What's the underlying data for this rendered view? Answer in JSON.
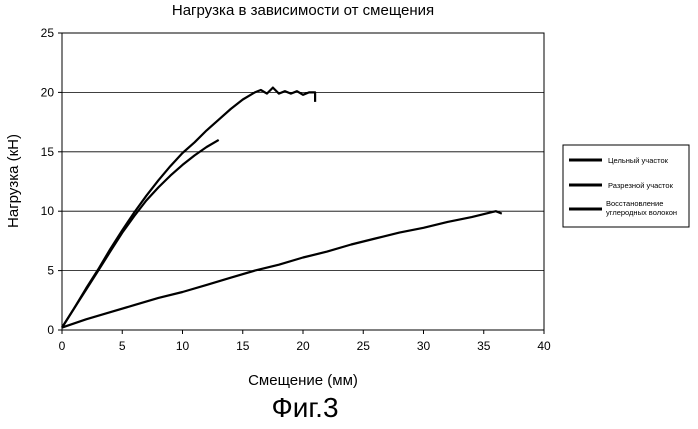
{
  "chart_data": {
    "type": "line",
    "title": "Нагрузка в зависимости от смещения",
    "xlabel": "Смещение (мм)",
    "ylabel": "Нагрузка  (кН)",
    "xlim": [
      0,
      40
    ],
    "ylim": [
      0,
      25
    ],
    "xticks": [
      0,
      5,
      10,
      15,
      20,
      25,
      30,
      35,
      40
    ],
    "yticks": [
      0,
      5,
      10,
      15,
      20,
      25
    ],
    "grid": "horizontal",
    "legend_position": "right",
    "series": [
      {
        "name": "Цельный участок",
        "x": [
          0,
          1,
          2,
          3,
          4,
          5,
          6,
          7,
          8,
          9,
          10,
          11,
          12,
          13,
          14,
          15,
          16,
          16.5,
          17,
          17.5,
          18,
          18.5,
          19,
          19.5,
          20,
          20.5,
          21,
          21
        ],
        "y": [
          0.2,
          1.8,
          3.5,
          5.1,
          6.8,
          8.4,
          9.9,
          11.3,
          12.6,
          13.8,
          14.9,
          15.8,
          16.8,
          17.7,
          18.6,
          19.4,
          20.0,
          20.2,
          19.9,
          20.4,
          19.9,
          20.1,
          19.9,
          20.1,
          19.8,
          20.0,
          20.0,
          19.2
        ]
      },
      {
        "name": "Разрезной участок",
        "x": [
          0,
          1,
          2,
          3,
          4,
          5,
          6,
          7,
          8,
          9,
          10,
          11,
          12,
          13
        ],
        "y": [
          0.2,
          1.8,
          3.4,
          5.0,
          6.6,
          8.2,
          9.6,
          10.9,
          12.0,
          13.0,
          13.9,
          14.7,
          15.4,
          16.0
        ]
      },
      {
        "name": "Восстановление углеродных волокон",
        "x": [
          0,
          2,
          4,
          6,
          8,
          10,
          12,
          14,
          16,
          18,
          20,
          22,
          24,
          26,
          28,
          30,
          32,
          34,
          36,
          36.5
        ],
        "y": [
          0.2,
          0.9,
          1.5,
          2.1,
          2.7,
          3.2,
          3.8,
          4.4,
          5.0,
          5.5,
          6.1,
          6.6,
          7.2,
          7.7,
          8.2,
          8.6,
          9.1,
          9.5,
          10.0,
          9.8
        ]
      }
    ]
  },
  "figure_label": "Фиг.3"
}
